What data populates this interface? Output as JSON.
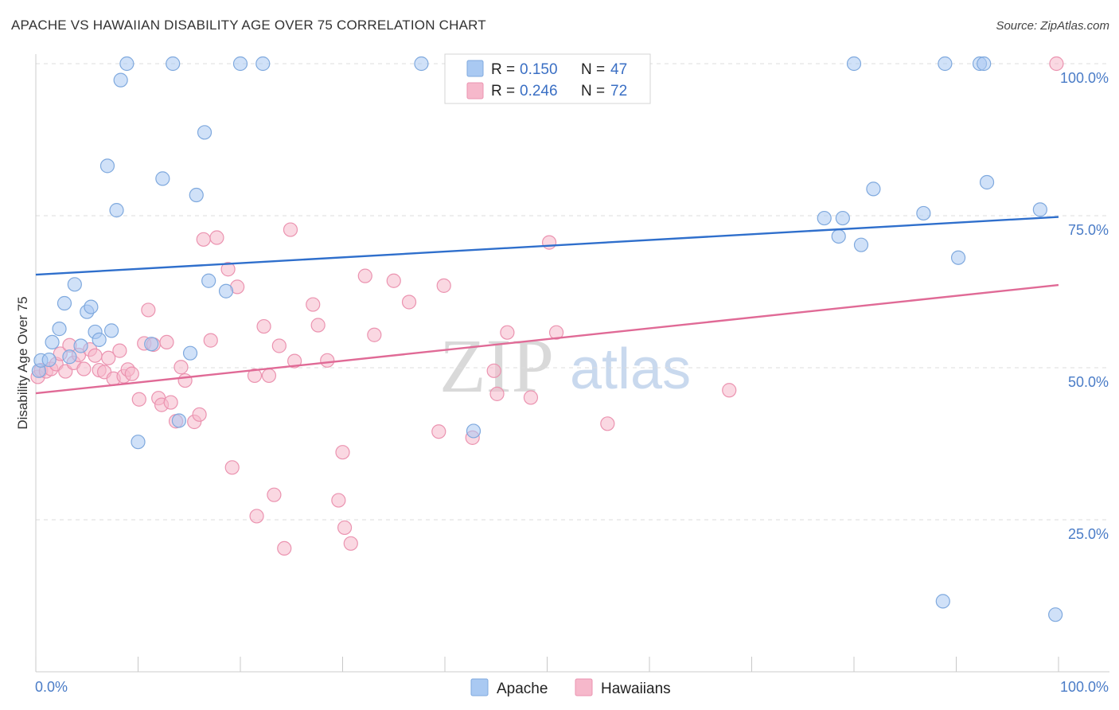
{
  "header": {
    "title": "APACHE VS HAWAIIAN DISABILITY AGE OVER 75 CORRELATION CHART",
    "source": "Source: ZipAtlas.com"
  },
  "watermark": {
    "zip": "ZIP",
    "atlas": "atlas"
  },
  "legend_top": {
    "rows": [
      {
        "r_label": "R =",
        "r_value": "0.150",
        "n_label": "N =",
        "n_value": "47",
        "color": "#a9c9f2"
      },
      {
        "r_label": "R =",
        "r_value": "0.246",
        "n_label": "N =",
        "n_value": "72",
        "color": "#f6b8cb"
      }
    ]
  },
  "legend_bottom": {
    "items": [
      "Apache",
      "Hawaiians"
    ]
  },
  "colors": {
    "apache_fill": "#a9c9f2",
    "apache_stroke": "#7fa9de",
    "apache_line": "#2f6fcc",
    "hawaiian_fill": "#f6b8cb",
    "hawaiian_stroke": "#eb93b0",
    "hawaiian_line": "#e06a96",
    "tick_text": "#4a7cc7",
    "grid": "#dddddd"
  },
  "chart_data": {
    "type": "scatter",
    "title": "APACHE VS HAWAIIAN DISABILITY AGE OVER 75 CORRELATION CHART",
    "xlabel": "",
    "ylabel": "Disability Age Over 75",
    "xlim": [
      0,
      100
    ],
    "ylim": [
      0,
      100
    ],
    "x_tick_labels": [
      "0.0%",
      "100.0%"
    ],
    "y_ticks": [
      25,
      50,
      75,
      100
    ],
    "y_tick_labels": [
      "25.0%",
      "50.0%",
      "75.0%",
      "100.0%"
    ],
    "grid": "horizontal dashed",
    "legend_position": "top-center",
    "series": [
      {
        "name": "Apache",
        "r": 0.15,
        "n": 47,
        "trend": {
          "x": [
            0,
            100
          ],
          "y": [
            65.3,
            74.8
          ]
        },
        "points": [
          [
            0.3,
            49.5
          ],
          [
            0.5,
            51.2
          ],
          [
            1.3,
            51.3
          ],
          [
            1.6,
            54.2
          ],
          [
            2.3,
            56.4
          ],
          [
            2.8,
            60.6
          ],
          [
            3.3,
            51.8
          ],
          [
            3.8,
            63.7
          ],
          [
            4.4,
            53.6
          ],
          [
            5.0,
            59.2
          ],
          [
            5.4,
            60.0
          ],
          [
            5.8,
            55.9
          ],
          [
            6.2,
            54.6
          ],
          [
            7.0,
            83.2
          ],
          [
            7.4,
            56.1
          ],
          [
            7.9,
            75.9
          ],
          [
            8.3,
            97.3
          ],
          [
            8.9,
            100.0
          ],
          [
            10.0,
            37.8
          ],
          [
            11.3,
            53.9
          ],
          [
            12.4,
            81.1
          ],
          [
            13.4,
            100.0
          ],
          [
            14.0,
            41.3
          ],
          [
            15.1,
            52.4
          ],
          [
            15.7,
            78.4
          ],
          [
            16.5,
            88.7
          ],
          [
            16.9,
            64.3
          ],
          [
            18.6,
            62.6
          ],
          [
            20.0,
            100.0
          ],
          [
            22.2,
            100.0
          ],
          [
            37.7,
            100.0
          ],
          [
            42.8,
            39.6
          ],
          [
            77.1,
            74.6
          ],
          [
            78.5,
            71.6
          ],
          [
            78.9,
            74.6
          ],
          [
            80.0,
            100.0
          ],
          [
            80.7,
            70.2
          ],
          [
            81.9,
            79.4
          ],
          [
            86.8,
            75.4
          ],
          [
            88.7,
            11.6
          ],
          [
            88.9,
            100.0
          ],
          [
            90.2,
            68.1
          ],
          [
            92.3,
            100.0
          ],
          [
            92.7,
            100.0
          ],
          [
            93.0,
            80.5
          ],
          [
            98.2,
            76.0
          ],
          [
            99.7,
            9.4
          ]
        ]
      },
      {
        "name": "Hawaiians",
        "r": 0.246,
        "n": 72,
        "trend": {
          "x": [
            0,
            100
          ],
          "y": [
            45.8,
            63.6
          ]
        },
        "points": [
          [
            0.2,
            48.5
          ],
          [
            0.5,
            49.6
          ],
          [
            1.0,
            49.4
          ],
          [
            1.5,
            49.8
          ],
          [
            2.0,
            50.6
          ],
          [
            2.4,
            52.3
          ],
          [
            2.9,
            49.4
          ],
          [
            3.3,
            53.7
          ],
          [
            3.7,
            50.8
          ],
          [
            4.2,
            52.1
          ],
          [
            4.7,
            49.8
          ],
          [
            5.3,
            53.0
          ],
          [
            5.8,
            52.0
          ],
          [
            6.2,
            49.6
          ],
          [
            6.7,
            49.3
          ],
          [
            7.1,
            51.6
          ],
          [
            7.6,
            48.2
          ],
          [
            8.2,
            52.8
          ],
          [
            8.6,
            48.6
          ],
          [
            9.0,
            49.7
          ],
          [
            9.4,
            49.0
          ],
          [
            10.1,
            44.8
          ],
          [
            10.6,
            54.0
          ],
          [
            11.0,
            59.5
          ],
          [
            11.5,
            53.8
          ],
          [
            12.0,
            45.0
          ],
          [
            12.3,
            43.9
          ],
          [
            12.8,
            54.2
          ],
          [
            13.2,
            44.3
          ],
          [
            13.7,
            41.2
          ],
          [
            14.2,
            50.1
          ],
          [
            14.6,
            47.9
          ],
          [
            15.5,
            41.1
          ],
          [
            16.0,
            42.3
          ],
          [
            16.4,
            71.1
          ],
          [
            17.1,
            54.5
          ],
          [
            17.7,
            71.4
          ],
          [
            18.8,
            66.2
          ],
          [
            19.2,
            33.6
          ],
          [
            19.7,
            63.3
          ],
          [
            21.4,
            48.7
          ],
          [
            21.6,
            25.6
          ],
          [
            22.3,
            56.8
          ],
          [
            22.8,
            48.7
          ],
          [
            23.3,
            29.1
          ],
          [
            23.8,
            53.6
          ],
          [
            24.3,
            20.3
          ],
          [
            24.9,
            72.7
          ],
          [
            25.3,
            51.1
          ],
          [
            27.1,
            60.4
          ],
          [
            27.6,
            57.0
          ],
          [
            28.5,
            51.2
          ],
          [
            29.6,
            28.2
          ],
          [
            30.0,
            36.1
          ],
          [
            30.2,
            23.7
          ],
          [
            30.8,
            21.1
          ],
          [
            32.2,
            65.1
          ],
          [
            33.1,
            55.4
          ],
          [
            35.0,
            64.3
          ],
          [
            36.5,
            60.8
          ],
          [
            39.4,
            39.5
          ],
          [
            39.9,
            63.5
          ],
          [
            42.7,
            38.5
          ],
          [
            44.8,
            49.5
          ],
          [
            45.1,
            45.7
          ],
          [
            46.1,
            55.8
          ],
          [
            48.4,
            45.1
          ],
          [
            50.2,
            70.6
          ],
          [
            50.9,
            55.8
          ],
          [
            55.9,
            40.8
          ],
          [
            67.8,
            46.3
          ],
          [
            99.8,
            100.0
          ]
        ]
      }
    ]
  }
}
